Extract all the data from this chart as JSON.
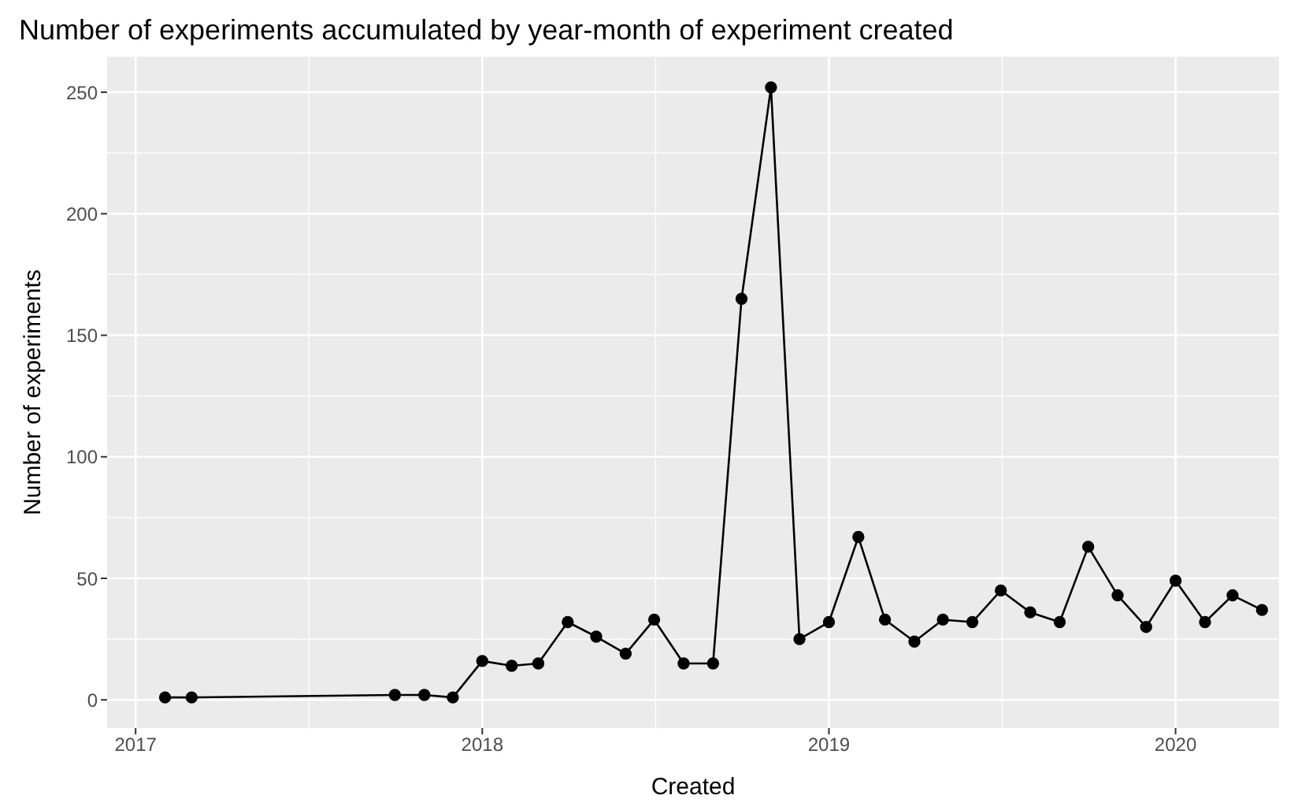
{
  "chart_data": {
    "type": "line",
    "title": "Number of experiments accumulated by year-month of experiment created",
    "xlabel": "Created",
    "ylabel": "Number of experiments",
    "x": [
      "2017-02",
      "2017-03",
      "2017-10",
      "2017-11",
      "2017-12",
      "2018-01",
      "2018-02",
      "2018-03",
      "2018-04",
      "2018-05",
      "2018-06",
      "2018-07",
      "2018-08",
      "2018-09",
      "2018-10",
      "2018-11",
      "2018-12",
      "2019-01",
      "2019-02",
      "2019-03",
      "2019-04",
      "2019-05",
      "2019-06",
      "2019-07",
      "2019-08",
      "2019-09",
      "2019-10",
      "2019-11",
      "2019-12",
      "2020-01",
      "2020-02",
      "2020-03",
      "2020-04"
    ],
    "series": [
      {
        "color": "#000000",
        "values": [
          1,
          1,
          2,
          2,
          1,
          16,
          14,
          15,
          32,
          26,
          19,
          33,
          15,
          15,
          165,
          252,
          25,
          32,
          67,
          33,
          24,
          33,
          32,
          45,
          36,
          32,
          63,
          43,
          30,
          49,
          32,
          43,
          37
        ]
      }
    ],
    "xlim": [
      "2016-12-02",
      "2020-04-19"
    ],
    "xticks": [
      "2017",
      "2018",
      "2019",
      "2020"
    ],
    "ylim": [
      -11.6,
      264.6
    ],
    "yticks": [
      0,
      50,
      100,
      150,
      200,
      250
    ],
    "grid": true,
    "marker": "circle",
    "line_style": "solid"
  }
}
